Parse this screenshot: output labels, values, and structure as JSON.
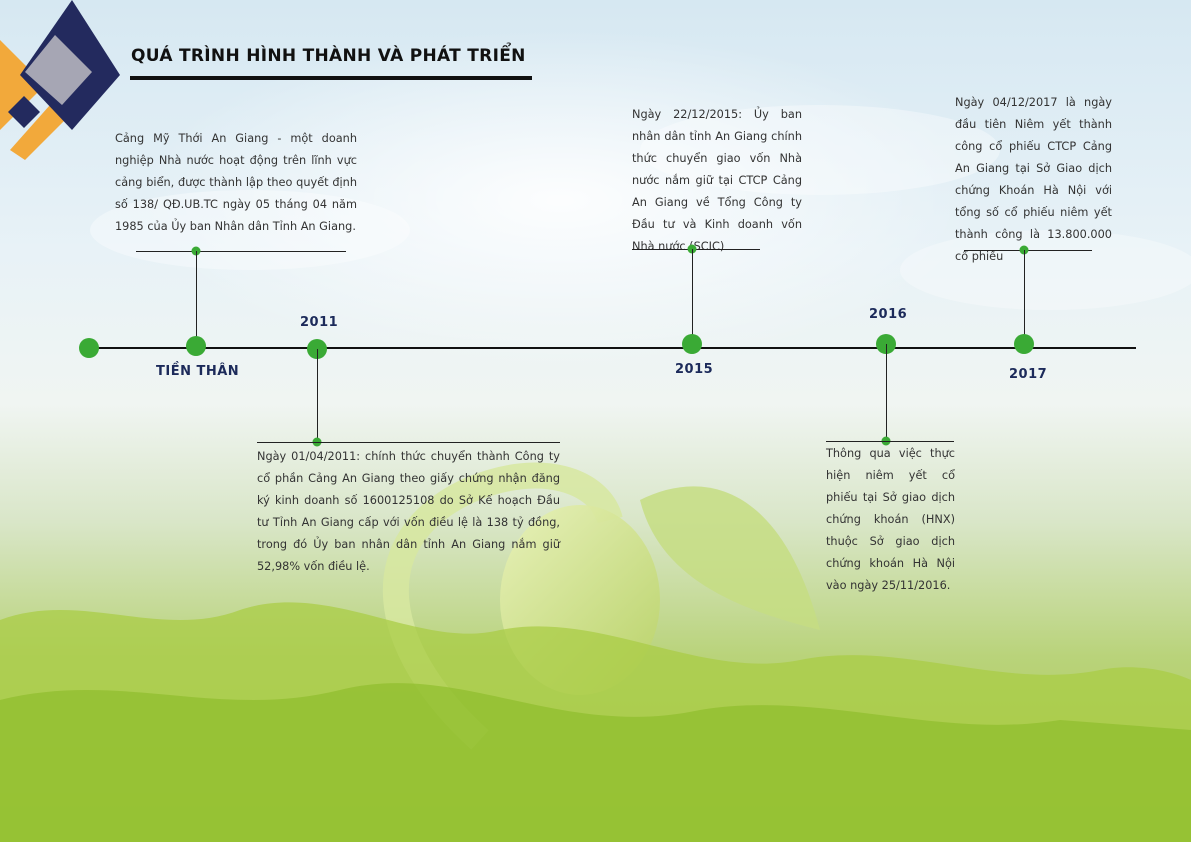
{
  "page": {
    "title": "QUÁ TRÌNH HÌNH THÀNH VÀ PHÁT TRIỂN"
  },
  "colors": {
    "accent_green": "#3aaa35",
    "navy": "#1c2a5a",
    "orange": "#f2a93b",
    "grey": "#a6a6b4"
  },
  "timeline": {
    "events": [
      {
        "label": "TIỀN THÂN",
        "text": "Cảng Mỹ Thới An Giang - một doanh nghiệp Nhà nước hoạt động trên lĩnh vực cảng biển, được thành lập theo quyết định số 138/ QĐ.UB.TC ngày 05 tháng 04 năm 1985 của Ủy ban Nhân dân Tỉnh An Giang."
      },
      {
        "label": "2011",
        "text": "Ngày 01/04/2011: chính thức chuyển thành Công ty cổ phần Cảng An Giang theo giấy chứng nhận đăng ký kinh doanh số 1600125108 do Sở Kế hoạch Đầu tư Tỉnh An Giang cấp với vốn điều lệ là 138 tỷ đồng, trong đó Ủy ban nhân dân tỉnh An Giang nắm giữ 52,98% vốn điều lệ."
      },
      {
        "label": "2015",
        "text": "Ngày 22/12/2015: Ủy ban nhân dân tỉnh An Giang chính thức chuyển giao vốn Nhà nước nắm giữ tại CTCP Cảng An Giang về Tổng Công ty Đầu tư và Kinh doanh vốn Nhà nước (SCIC)"
      },
      {
        "label": "2016",
        "text": "Thông qua việc thực hiện niêm yết cổ phiếu tại Sở giao dịch chứng khoán (HNX) thuộc Sở giao dịch chứng khoán Hà Nội vào ngày 25/11/2016."
      },
      {
        "label": "2017",
        "text": "Ngày 04/12/2017 là ngày đầu tiên Niêm yết thành công cổ phiếu CTCP Cảng An Giang tại Sở Giao dịch chứng Khoán Hà Nội với tổng số cổ phiếu niêm yết thành công là 13.800.000 cổ phiếu"
      }
    ]
  }
}
